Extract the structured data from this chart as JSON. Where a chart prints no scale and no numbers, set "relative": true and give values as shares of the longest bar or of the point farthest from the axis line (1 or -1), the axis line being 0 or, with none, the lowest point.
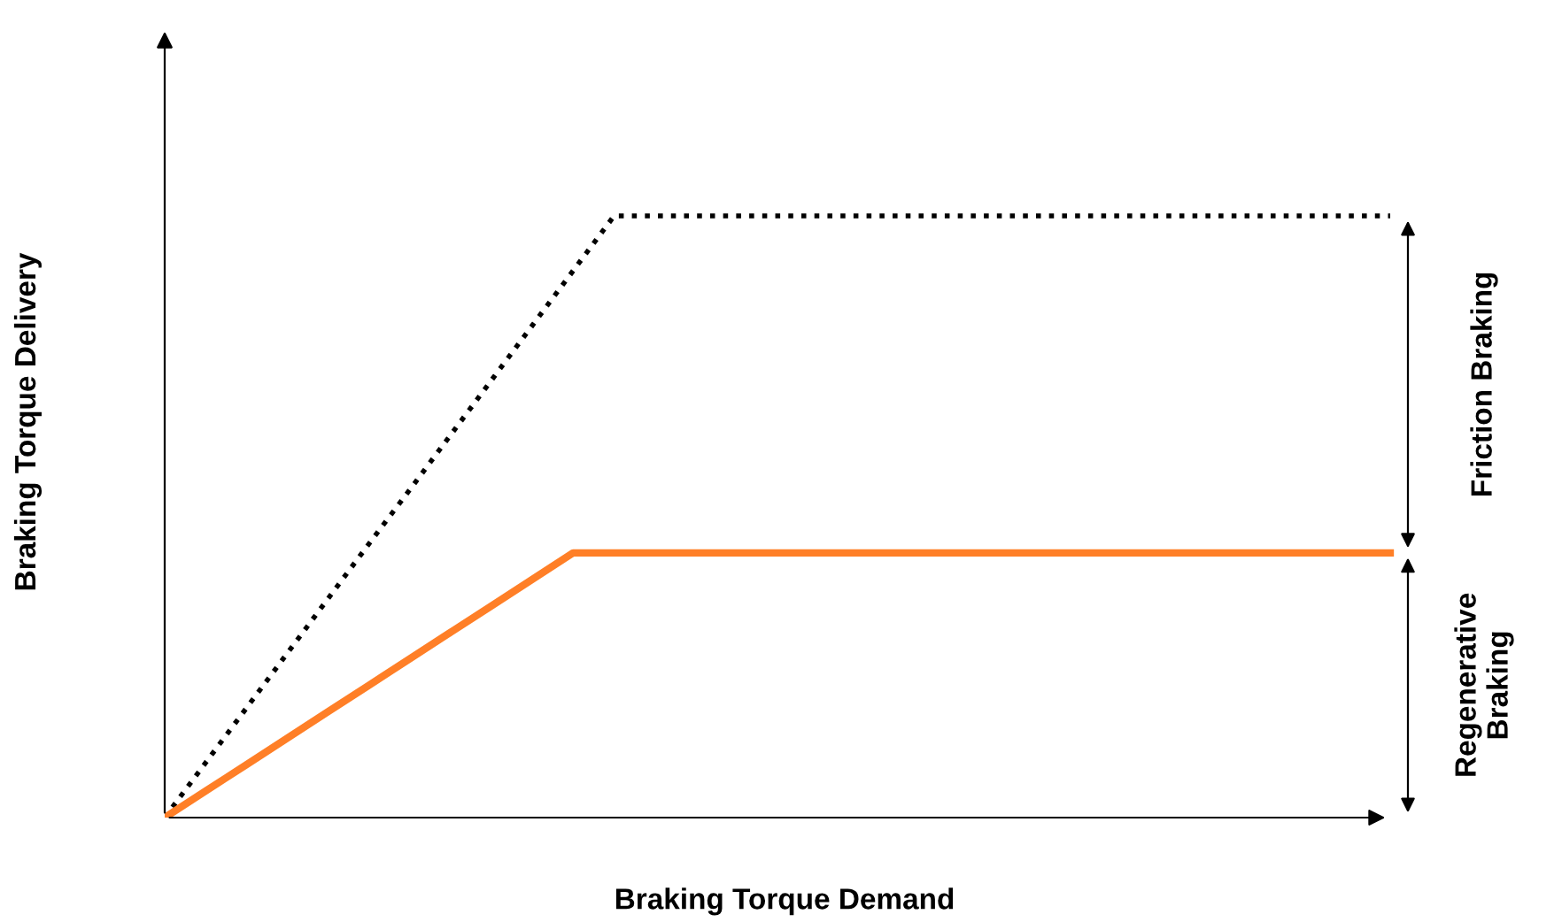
{
  "chart_data": {
    "type": "line",
    "relative": true,
    "xlabel": "Braking Torque Demand",
    "ylabel": "Braking Torque Delivery",
    "categories": [
      null,
      null,
      null,
      null,
      null,
      null,
      null,
      null,
      null,
      null,
      null,
      null,
      null,
      null,
      null,
      null,
      null,
      null,
      null,
      null,
      null,
      null,
      null,
      null,
      null,
      null,
      null,
      null,
      null,
      null,
      null
    ],
    "series": [
      {
        "color": "#000000",
        "line_style": "dotted",
        "values": [
          0,
          0.091,
          0.182,
          0.273,
          0.364,
          0.455,
          0.545,
          0.636,
          0.727,
          0.818,
          0.909,
          1,
          1,
          1,
          1,
          1,
          1,
          1,
          1,
          1,
          1,
          1,
          1,
          1,
          1,
          1,
          1,
          1,
          1,
          1,
          1
        ]
      },
      {
        "color": "#ff7f27",
        "line_style": "solid",
        "values": [
          0,
          0.044,
          0.088,
          0.132,
          0.176,
          0.22,
          0.264,
          0.308,
          0.352,
          0.396,
          0.44,
          0.44,
          0.44,
          0.44,
          0.44,
          0.44,
          0.44,
          0.44,
          0.44,
          0.44,
          0.44,
          0.44,
          0.44,
          0.44,
          0.44,
          0.44,
          0.44,
          0.44,
          0.44,
          0.44,
          0.44
        ]
      }
    ],
    "annotations": [
      "Friction Braking",
      "Regenerative Braking"
    ],
    "marker": "none"
  }
}
